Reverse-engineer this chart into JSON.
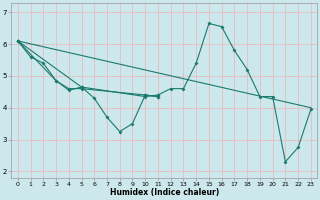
{
  "title": "",
  "xlabel": "Humidex (Indice chaleur)",
  "bg_color": "#cce8ec",
  "line_color": "#1a7a6e",
  "grid_color": "#e8b4b4",
  "xlim": [
    -0.5,
    23.5
  ],
  "ylim": [
    1.8,
    7.3
  ],
  "yticks": [
    2,
    3,
    4,
    5,
    6,
    7
  ],
  "xticks": [
    0,
    1,
    2,
    3,
    4,
    5,
    6,
    7,
    8,
    9,
    10,
    11,
    12,
    13,
    14,
    15,
    16,
    17,
    18,
    19,
    20,
    21,
    22,
    23
  ],
  "s1x": [
    0,
    1,
    2,
    3,
    4,
    5,
    10,
    11
  ],
  "s1y": [
    6.1,
    5.6,
    5.4,
    4.85,
    4.6,
    4.6,
    4.4,
    4.35
  ],
  "s2x": [
    0,
    3,
    4,
    5,
    6,
    7,
    8,
    9,
    10,
    11
  ],
  "s2y": [
    6.1,
    4.85,
    4.55,
    4.65,
    4.3,
    3.7,
    3.25,
    3.5,
    4.4,
    4.35
  ],
  "s3x": [
    0,
    5,
    10,
    11,
    12,
    13,
    14,
    15,
    16,
    17,
    18,
    19,
    20,
    21,
    22,
    23
  ],
  "s3y": [
    6.1,
    4.65,
    4.35,
    4.4,
    4.6,
    4.6,
    5.4,
    6.65,
    6.55,
    5.8,
    5.2,
    4.35,
    4.35,
    2.3,
    2.75,
    3.95
  ],
  "s4x": [
    0,
    23
  ],
  "s4y": [
    6.1,
    4.0
  ]
}
